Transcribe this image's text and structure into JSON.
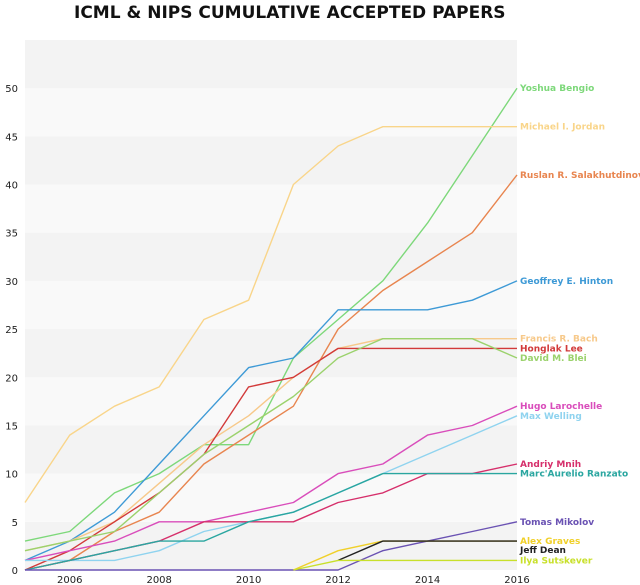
{
  "chart_data": {
    "type": "line",
    "title": "ICML & NIPS CUMULATIVE ACCEPTED PAPERS",
    "xlabel": "",
    "ylabel": "",
    "xlim": [
      2005,
      2016
    ],
    "ylim": [
      0,
      55
    ],
    "x_ticks": [
      "2006",
      "2008",
      "2010",
      "2012",
      "2014",
      "2016"
    ],
    "y_ticks": [
      "0",
      "5",
      "10",
      "15",
      "20",
      "25",
      "30",
      "35",
      "40",
      "45",
      "50"
    ],
    "grid": "horizontal bands",
    "x": [
      2005,
      2006,
      2007,
      2008,
      2009,
      2010,
      2011,
      2012,
      2013,
      2014,
      2015,
      2016
    ],
    "series": [
      {
        "name": "Yoshua Bengio",
        "color": "#7dd87a",
        "values": [
          3,
          4,
          8,
          10,
          13,
          13,
          22,
          26,
          30,
          36,
          43,
          50
        ]
      },
      {
        "name": "Michael I. Jordan",
        "color": "#f9d58a",
        "values": [
          7,
          14,
          17,
          19,
          26,
          28,
          40,
          44,
          46,
          46,
          46,
          46
        ]
      },
      {
        "name": "Ruslan R. Salakhutdinov",
        "color": "#e8854f",
        "values": [
          0,
          1,
          4,
          6,
          11,
          14,
          17,
          25,
          29,
          32,
          35,
          41
        ]
      },
      {
        "name": "Geoffrey E. Hinton",
        "color": "#3e9ad6",
        "values": [
          1,
          3,
          6,
          11,
          16,
          21,
          22,
          27,
          27,
          27,
          28,
          30
        ]
      },
      {
        "name": "Francis R. Bach",
        "color": "#f7c98a",
        "values": [
          2,
          3,
          5,
          9,
          13,
          16,
          20,
          23,
          24,
          24,
          24,
          24
        ]
      },
      {
        "name": "Honglak Lee",
        "color": "#d23a3a",
        "values": [
          0,
          2,
          5,
          8,
          12,
          19,
          20,
          23,
          23,
          23,
          23,
          23
        ]
      },
      {
        "name": "David M. Blei",
        "color": "#9bd26c",
        "values": [
          2,
          3,
          4,
          8,
          12,
          15,
          18,
          22,
          24,
          24,
          24,
          22
        ]
      },
      {
        "name": "Hugo Larochelle",
        "color": "#d94dbb",
        "values": [
          1,
          2,
          3,
          5,
          5,
          6,
          7,
          10,
          11,
          14,
          15,
          17
        ]
      },
      {
        "name": "Max Welling",
        "color": "#8fd3ef",
        "values": [
          1,
          1,
          1,
          2,
          4,
          5,
          6,
          8,
          10,
          12,
          14,
          16
        ]
      },
      {
        "name": "Andriy Mnih",
        "color": "#d62f6b",
        "values": [
          0,
          1,
          2,
          3,
          5,
          5,
          5,
          7,
          8,
          10,
          10,
          11
        ]
      },
      {
        "name": "Marc'Aurelio Ranzato",
        "color": "#2aa6a0",
        "values": [
          0,
          1,
          2,
          3,
          3,
          5,
          6,
          8,
          10,
          10,
          10,
          10
        ]
      },
      {
        "name": "Tomas Mikolov",
        "color": "#6a52b3",
        "values": [
          0,
          0,
          0,
          0,
          0,
          0,
          0,
          0,
          2,
          3,
          4,
          5
        ]
      },
      {
        "name": "Alex Graves",
        "color": "#f0d02a",
        "values": [
          null,
          null,
          null,
          null,
          null,
          null,
          0,
          2,
          3,
          3,
          3,
          3
        ]
      },
      {
        "name": "Jeff Dean",
        "color": "#222222",
        "values": [
          null,
          null,
          null,
          null,
          null,
          null,
          null,
          1,
          3,
          3,
          3,
          3
        ]
      },
      {
        "name": "Ilya Sutskever",
        "color": "#c8e02a",
        "values": [
          null,
          null,
          null,
          null,
          null,
          null,
          0,
          1,
          1,
          1,
          1,
          1
        ]
      }
    ],
    "end_labels": [
      {
        "text": "Yoshua Bengio",
        "color": "#7dd87a"
      },
      {
        "text": "Michael I. Jordan",
        "color": "#f9d58a"
      },
      {
        "text": "Ruslan R. Salakhutdinov",
        "color": "#e8854f"
      },
      {
        "text": "Geoffrey E. Hinton",
        "color": "#3e9ad6"
      },
      {
        "text": "Francis R. Bach",
        "color": "#f7c98a"
      },
      {
        "text": "Honglak Lee",
        "color": "#d23a3a"
      },
      {
        "text": "David M. Blei",
        "color": "#9bd26c"
      },
      {
        "text": "Hugo Larochelle",
        "color": "#d94dbb"
      },
      {
        "text": "Max Welling",
        "color": "#8fd3ef"
      },
      {
        "text": "Andriy Mnih",
        "color": "#d62f6b"
      },
      {
        "text": "Marc'Aurelio Ranzato",
        "color": "#2aa6a0"
      },
      {
        "text": "Tomas Mikolov",
        "color": "#6a52b3"
      },
      {
        "text": "Alex Graves",
        "color": "#f0d02a"
      },
      {
        "text": "Jeff Dean",
        "color": "#222222"
      },
      {
        "text": "Ilya Sutskever",
        "color": "#c8e02a"
      }
    ]
  }
}
